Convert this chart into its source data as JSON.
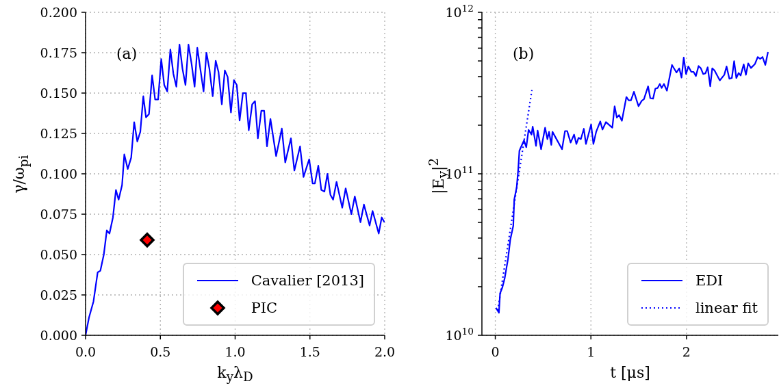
{
  "chart_data": [
    {
      "type": "line",
      "annotations": [
        "(a)"
      ],
      "xlabel": "k$_{y}$λ$_{D}$",
      "ylabel": "γ/ω$_{pi}$",
      "xlim": [
        0,
        2
      ],
      "ylim": [
        0,
        0.2
      ],
      "xticks": [
        {
          "value": 0,
          "label": "0.0"
        },
        {
          "value": 0.5,
          "label": "0.5"
        },
        {
          "value": 1,
          "label": "1.0"
        },
        {
          "value": 1.5,
          "label": "1.5"
        },
        {
          "value": 2,
          "label": "2.0"
        }
      ],
      "yticks": [
        {
          "value": 0,
          "label": "0.000"
        },
        {
          "value": 0.025,
          "label": "0.025"
        },
        {
          "value": 0.05,
          "label": "0.050"
        },
        {
          "value": 0.075,
          "label": "0.075"
        },
        {
          "value": 0.1,
          "label": "0.100"
        },
        {
          "value": 0.125,
          "label": "0.125"
        },
        {
          "value": 0.15,
          "label": "0.150"
        },
        {
          "value": 0.175,
          "label": "0.175"
        },
        {
          "value": 0.2,
          "label": "0.200"
        }
      ],
      "grid": true,
      "legend": "bottom right",
      "series": [
        {
          "name": "Cavalier [2013]",
          "color": "#0000ff",
          "marker": "none",
          "line_style": "solid",
          "x": [
            0,
            0.023,
            0.053,
            0.081,
            0.099,
            0.122,
            0.142,
            0.16,
            0.183,
            0.203,
            0.221,
            0.244,
            0.259,
            0.282,
            0.305,
            0.325,
            0.346,
            0.366,
            0.386,
            0.404,
            0.424,
            0.445,
            0.465,
            0.485,
            0.506,
            0.526,
            0.546,
            0.567,
            0.587,
            0.607,
            0.628,
            0.648,
            0.668,
            0.688,
            0.709,
            0.729,
            0.747,
            0.789,
            0.808,
            0.828,
            0.85,
            0.87,
            0.889,
            0.911,
            0.931,
            0.95,
            0.972,
            0.992,
            1.011,
            1.03,
            1.052,
            1.072,
            1.091,
            1.114,
            1.133,
            1.152,
            1.175,
            1.194,
            1.213,
            1.236,
            1.274,
            1.312,
            1.335,
            1.373,
            1.396,
            1.434,
            1.457,
            1.495,
            1.518,
            1.533,
            1.556,
            1.576,
            1.597,
            1.617,
            1.637,
            1.655,
            1.678,
            1.716,
            1.739,
            1.777,
            1.8,
            1.838,
            1.861,
            1.899,
            1.919,
            1.96,
            1.98,
            1.998
          ],
          "values": [
            0,
            0.011,
            0.021,
            0.039,
            0.04,
            0.05,
            0.065,
            0.063,
            0.073,
            0.09,
            0.084,
            0.093,
            0.112,
            0.103,
            0.11,
            0.132,
            0.12,
            0.126,
            0.148,
            0.135,
            0.137,
            0.161,
            0.146,
            0.146,
            0.171,
            0.155,
            0.151,
            0.177,
            0.162,
            0.154,
            0.18,
            0.165,
            0.155,
            0.18,
            0.168,
            0.154,
            0.178,
            0.151,
            0.175,
            0.165,
            0.148,
            0.17,
            0.163,
            0.143,
            0.164,
            0.16,
            0.138,
            0.158,
            0.155,
            0.133,
            0.15,
            0.15,
            0.127,
            0.143,
            0.145,
            0.122,
            0.139,
            0.139,
            0.117,
            0.134,
            0.111,
            0.128,
            0.107,
            0.122,
            0.102,
            0.117,
            0.098,
            0.109,
            0.094,
            0.094,
            0.105,
            0.09,
            0.089,
            0.1,
            0.087,
            0.084,
            0.095,
            0.079,
            0.091,
            0.075,
            0.086,
            0.07,
            0.081,
            0.068,
            0.077,
            0.063,
            0.073,
            0.07
          ]
        },
        {
          "name": "PIC",
          "type": "scatter",
          "color": "#ff0000",
          "marker": "diamond",
          "x": [
            0.412
          ],
          "values": [
            0.059
          ]
        }
      ]
    },
    {
      "type": "line",
      "annotations": [
        "(b)"
      ],
      "xlabel": "t [μs]",
      "ylabel": "|E$_{y}$|$^{2}$",
      "log": "y",
      "xlim": [
        -0.14,
        2.96
      ],
      "ylim": [
        10000000000.0,
        1000000000000.0
      ],
      "xticks": [
        0,
        1,
        2
      ],
      "yticks": [
        {
          "value": 10000000000.0,
          "label": "10$^{10}$"
        },
        {
          "value": 20000000000.0,
          "label": null
        },
        {
          "value": 30000000000.0,
          "label": null
        },
        {
          "value": 40000000000.0,
          "label": null
        },
        {
          "value": 50000000000.0,
          "label": null
        },
        {
          "value": 60000000000.0,
          "label": null
        },
        {
          "value": 70000000000.0,
          "label": null
        },
        {
          "value": 80000000000.0,
          "label": null
        },
        {
          "value": 90000000000.0,
          "label": null
        },
        {
          "value": 100000000000.0,
          "label": "10$^{11}$"
        },
        {
          "value": 200000000000.0,
          "label": null
        },
        {
          "value": 300000000000.0,
          "label": null
        },
        {
          "value": 400000000000.0,
          "label": null
        },
        {
          "value": 500000000000.0,
          "label": null
        },
        {
          "value": 600000000000.0,
          "label": null
        },
        {
          "value": 700000000000.0,
          "label": null
        },
        {
          "value": 800000000000.0,
          "label": null
        },
        {
          "value": 900000000000.0,
          "label": null
        },
        {
          "value": 1000000000000.0,
          "label": "10$^{12}$"
        }
      ],
      "grid": true,
      "legend": "bottom right",
      "series": [
        {
          "name": "EDI",
          "color": "#0000ff",
          "marker": "none",
          "line_style": "solid",
          "x": [
            0.007,
            0.038,
            0.05,
            0.074,
            0.098,
            0.133,
            0.157,
            0.188,
            0.198,
            0.224,
            0.24,
            0.252,
            0.3,
            0.324,
            0.348,
            0.379,
            0.391,
            0.426,
            0.443,
            0.479,
            0.521,
            0.545,
            0.562,
            0.586,
            0.598,
            0.698,
            0.729,
            0.752,
            0.788,
            0.824,
            0.848,
            0.871,
            0.895,
            0.926,
            0.948,
            1.002,
            1.026,
            1.055,
            1.098,
            1.121,
            1.157,
            1.224,
            1.248,
            1.271,
            1.295,
            1.324,
            1.371,
            1.395,
            1.419,
            1.45,
            1.498,
            1.531,
            1.555,
            1.598,
            1.621,
            1.65,
            1.674,
            1.698,
            1.721,
            1.74,
            1.764,
            1.795,
            1.848,
            1.895,
            1.924,
            1.948,
            1.971,
            1.995,
            2.019,
            2.05,
            2.074,
            2.098,
            2.126,
            2.15,
            2.174,
            2.198,
            2.221,
            2.248,
            2.269,
            2.293,
            2.348,
            2.395,
            2.419,
            2.448,
            2.474,
            2.498,
            2.521,
            2.545,
            2.566,
            2.598,
            2.621,
            2.645,
            2.674,
            2.716,
            2.745,
            2.769,
            2.795,
            2.824,
            2.852
          ],
          "values": [
            14800000000.0,
            13800000000.0,
            18200000000.0,
            19800000000.0,
            22500000000.0,
            29700000000.0,
            39200000000.0,
            47600000000.0,
            69200000000.0,
            82800000000.0,
            107000000000.0,
            139000000000.0,
            161000000000.0,
            146000000000.0,
            187000000000.0,
            175000000000.0,
            196000000000.0,
            149000000000.0,
            185000000000.0,
            142000000000.0,
            193000000000.0,
            164000000000.0,
            182000000000.0,
            151000000000.0,
            182000000000.0,
            142000000000.0,
            184000000000.0,
            184000000000.0,
            156000000000.0,
            175000000000.0,
            153000000000.0,
            167000000000.0,
            164000000000.0,
            190000000000.0,
            153000000000.0,
            202000000000.0,
            153000000000.0,
            182000000000.0,
            211000000000.0,
            188000000000.0,
            209000000000.0,
            193000000000.0,
            262000000000.0,
            223000000000.0,
            231000000000.0,
            213000000000.0,
            299000000000.0,
            285000000000.0,
            285000000000.0,
            322000000000.0,
            262000000000.0,
            283000000000.0,
            290000000000.0,
            348000000000.0,
            294000000000.0,
            292000000000.0,
            337000000000.0,
            340000000000.0,
            360000000000.0,
            340000000000.0,
            360000000000.0,
            327000000000.0,
            472000000000.0,
            424000000000.0,
            450000000000.0,
            394000000000.0,
            525000000000.0,
            415000000000.0,
            462000000000.0,
            428000000000.0,
            428000000000.0,
            403000000000.0,
            465000000000.0,
            450000000000.0,
            415000000000.0,
            419000000000.0,
            457000000000.0,
            348000000000.0,
            450000000000.0,
            436000000000.0,
            379000000000.0,
            410000000000.0,
            462000000000.0,
            388000000000.0,
            392000000000.0,
            498000000000.0,
            392000000000.0,
            421000000000.0,
            406000000000.0,
            476000000000.0,
            410000000000.0,
            483000000000.0,
            452000000000.0,
            479000000000.0,
            529000000000.0,
            515000000000.0,
            529000000000.0,
            472000000000.0,
            568000000000.0
          ]
        },
        {
          "name": "linear fit",
          "color": "#0000ff",
          "marker": "none",
          "line_style": "dotted",
          "x": [
            0.026,
            0.383
          ],
          "values": [
            14300000000.0,
            330000000000.0
          ]
        }
      ]
    }
  ]
}
